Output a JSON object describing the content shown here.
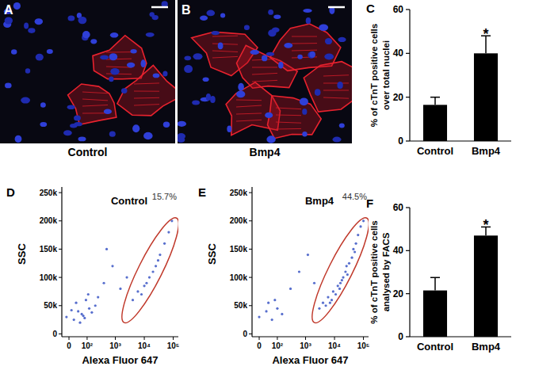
{
  "chart_data": [
    {
      "type": "image",
      "panel": "A",
      "caption": "Control"
    },
    {
      "type": "image",
      "panel": "B",
      "caption": "Bmp4"
    },
    {
      "type": "bar",
      "panel": "C",
      "categories": [
        "Control",
        "Bmp4"
      ],
      "values": [
        16.5,
        40
      ],
      "errors": [
        3.5,
        8
      ],
      "color": "#000000",
      "ylabel": [
        "% of cTnT positive cells",
        "over total nuclei"
      ],
      "ylim": [
        0,
        60
      ],
      "yticks": [
        0,
        20,
        40,
        60
      ],
      "annotations": [
        {
          "text": "*",
          "category": 1
        }
      ]
    },
    {
      "type": "scatter",
      "panel": "D",
      "title": "Control",
      "xlabel": "Alexa Fluor 647",
      "ylabel": "SSC",
      "color": "#3a55c4",
      "x": [
        -10,
        20,
        40,
        60,
        80,
        120,
        150,
        30,
        50,
        90,
        200,
        10,
        70,
        110,
        250,
        400,
        800,
        1500,
        500,
        2500,
        4000,
        6000,
        8000,
        12000,
        15000,
        20000,
        25000,
        35000,
        50000,
        70000,
        90000,
        10000,
        30000
      ],
      "values": [
        30000,
        25000,
        40000,
        35000,
        28000,
        45000,
        38000,
        55000,
        20000,
        60000,
        50000,
        42000,
        32000,
        70000,
        65000,
        90000,
        120000,
        80000,
        150000,
        100000,
        60000,
        75000,
        70000,
        90000,
        100000,
        110000,
        120000,
        140000,
        160000,
        180000,
        200000,
        85000,
        130000
      ],
      "xlim": [
        -30,
        150000
      ],
      "ylim": [
        -5000,
        260000
      ],
      "xticks": [
        0,
        {
          "value": 100,
          "label": "10²"
        },
        {
          "value": 1000,
          "label": "10³"
        },
        {
          "value": 10000,
          "label": "10⁴"
        },
        {
          "value": 100000,
          "label": "10⁵"
        }
      ],
      "yticks": [
        0,
        {
          "value": 50000,
          "label": "50k"
        },
        {
          "value": 100000,
          "label": "100k"
        },
        {
          "value": 150000,
          "label": "150k"
        },
        {
          "value": 200000,
          "label": "200k"
        },
        {
          "value": 250000,
          "label": "250k"
        }
      ],
      "gate": {
        "x": [
          2000,
          130000
        ],
        "y": [
          20000,
          205000
        ],
        "color": "#c0392b"
      },
      "annotations": [
        {
          "text": "15.7%"
        }
      ]
    },
    {
      "type": "scatter",
      "panel": "E",
      "title": "Bmp4",
      "xlabel": "Alexa Fluor 647",
      "ylabel": "SSC",
      "color": "#3a55c4",
      "x": [
        0,
        30,
        60,
        100,
        40,
        150,
        80,
        300,
        600,
        1200,
        2000,
        3000,
        4000,
        5000,
        6000,
        8000,
        9000,
        11000,
        13000,
        15000,
        18000,
        20000,
        24000,
        28000,
        32000,
        40000,
        45000,
        55000,
        65000,
        80000,
        100000,
        7000,
        16000,
        26000,
        50000
      ],
      "values": [
        30000,
        40000,
        25000,
        45000,
        55000,
        35000,
        60000,
        80000,
        110000,
        140000,
        90000,
        45000,
        55000,
        50000,
        65000,
        60000,
        75000,
        70000,
        85000,
        80000,
        95000,
        100000,
        110000,
        105000,
        125000,
        135000,
        150000,
        160000,
        175000,
        190000,
        200000,
        55000,
        90000,
        120000,
        145000
      ],
      "xlim": [
        -30,
        150000
      ],
      "ylim": [
        -5000,
        260000
      ],
      "xticks": [
        0,
        {
          "value": 100,
          "label": "10²"
        },
        {
          "value": 1000,
          "label": "10³"
        },
        {
          "value": 10000,
          "label": "10⁴"
        },
        {
          "value": 100000,
          "label": "10⁵"
        }
      ],
      "yticks": [
        0,
        {
          "value": 50000,
          "label": "50k"
        },
        {
          "value": 100000,
          "label": "100k"
        },
        {
          "value": 150000,
          "label": "150k"
        },
        {
          "value": 200000,
          "label": "200k"
        },
        {
          "value": 250000,
          "label": "250k"
        }
      ],
      "gate": {
        "x": [
          2000,
          130000
        ],
        "y": [
          20000,
          205000
        ],
        "color": "#c0392b"
      },
      "annotations": [
        {
          "text": "44.5%"
        }
      ]
    },
    {
      "type": "bar",
      "panel": "F",
      "categories": [
        "Control",
        "Bmp4"
      ],
      "values": [
        21.5,
        47
      ],
      "errors": [
        6,
        4
      ],
      "color": "#000000",
      "ylabel": [
        "% of cTnT positive cells",
        "analysed by FACS"
      ],
      "ylim": [
        0,
        60
      ],
      "yticks": [
        0,
        20,
        40,
        60
      ],
      "annotations": [
        {
          "text": "*",
          "category": 1
        }
      ]
    }
  ]
}
